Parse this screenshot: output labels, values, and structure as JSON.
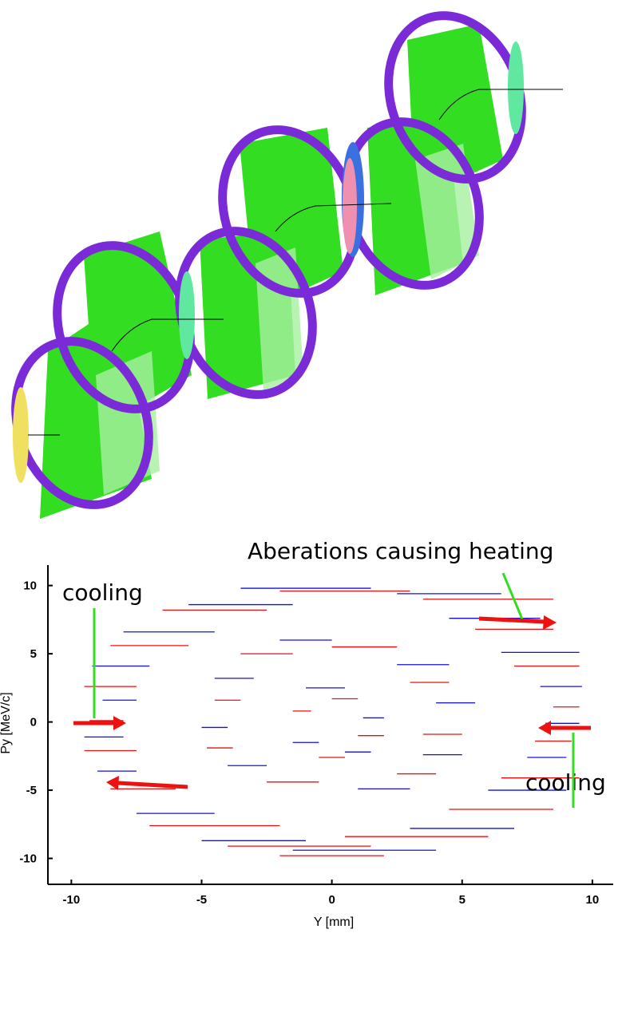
{
  "chart_data": {
    "type": "segments",
    "xlabel": "Y [mm]",
    "ylabel": "Py [MeV/c]",
    "xlim": [
      -10.9,
      10.8
    ],
    "ylim": [
      -11.9,
      11.5
    ],
    "xticks": [
      -10,
      -5,
      0,
      5,
      10
    ],
    "yticks": [
      -10,
      -5,
      0,
      5,
      10
    ],
    "annotations": [
      "Aberations causing heating",
      "cooling",
      "cooling"
    ],
    "series": [
      {
        "color": "#1010e0",
        "segments": [
          [
            -3.5,
            1.5,
            9.8
          ],
          [
            2.5,
            6.5,
            9.4
          ],
          [
            -5.5,
            -1.5,
            8.6
          ],
          [
            4.5,
            8.0,
            7.6
          ],
          [
            -8.0,
            -4.5,
            6.6
          ],
          [
            6.5,
            9.5,
            5.1
          ],
          [
            -9.2,
            -7.0,
            4.1
          ],
          [
            8.0,
            9.6,
            2.6
          ],
          [
            -8.8,
            -7.5,
            1.6
          ],
          [
            8.2,
            9.5,
            -0.1
          ],
          [
            -9.5,
            -8.0,
            -1.1
          ],
          [
            7.5,
            9.0,
            -2.6
          ],
          [
            -9.0,
            -7.5,
            -3.6
          ],
          [
            6.0,
            9.0,
            -5.0
          ],
          [
            -7.5,
            -4.5,
            -6.7
          ],
          [
            3.0,
            7.0,
            -7.8
          ],
          [
            -5.0,
            -1.0,
            -8.7
          ],
          [
            -1.5,
            4.0,
            -9.4
          ],
          [
            -2.0,
            0.0,
            6.0
          ],
          [
            2.5,
            4.5,
            4.2
          ],
          [
            -4.5,
            -3.0,
            3.2
          ],
          [
            4.0,
            5.5,
            1.4
          ],
          [
            -5.0,
            -4.0,
            -0.4
          ],
          [
            3.5,
            5.0,
            -2.4
          ],
          [
            -4.0,
            -2.5,
            -3.2
          ],
          [
            1.0,
            3.0,
            -4.9
          ],
          [
            -1.0,
            0.5,
            2.5
          ],
          [
            1.2,
            2.0,
            0.3
          ],
          [
            -1.5,
            -0.5,
            -1.5
          ],
          [
            0.5,
            1.5,
            -2.2
          ]
        ]
      },
      {
        "color": "#e81010",
        "segments": [
          [
            -2.0,
            3.0,
            9.6
          ],
          [
            3.5,
            8.5,
            9.0
          ],
          [
            -6.5,
            -2.5,
            8.2
          ],
          [
            5.5,
            8.5,
            6.8
          ],
          [
            -8.5,
            -5.5,
            5.6
          ],
          [
            7.0,
            9.5,
            4.1
          ],
          [
            -9.5,
            -7.5,
            2.6
          ],
          [
            8.5,
            9.5,
            1.1
          ],
          [
            -9.3,
            -8.0,
            0.1
          ],
          [
            7.8,
            9.2,
            -1.4
          ],
          [
            -9.5,
            -7.5,
            -2.1
          ],
          [
            6.5,
            9.5,
            -4.1
          ],
          [
            -8.5,
            -6.0,
            -4.9
          ],
          [
            4.5,
            8.5,
            -6.4
          ],
          [
            -7.0,
            -2.0,
            -7.6
          ],
          [
            0.5,
            6.0,
            -8.4
          ],
          [
            -4.0,
            1.5,
            -9.1
          ],
          [
            -2.0,
            2.0,
            -9.8
          ],
          [
            0.0,
            2.5,
            5.5
          ],
          [
            -3.5,
            -1.5,
            5.0
          ],
          [
            3.0,
            4.5,
            2.9
          ],
          [
            -4.5,
            -3.5,
            1.6
          ],
          [
            3.5,
            5.0,
            -0.9
          ],
          [
            -4.8,
            -3.8,
            -1.9
          ],
          [
            2.5,
            4.0,
            -3.8
          ],
          [
            -2.5,
            -0.5,
            -4.4
          ],
          [
            0.0,
            1.0,
            1.7
          ],
          [
            -1.5,
            -0.8,
            0.8
          ],
          [
            1.0,
            2.0,
            -1.0
          ],
          [
            -0.5,
            0.5,
            -2.6
          ]
        ]
      }
    ]
  }
}
